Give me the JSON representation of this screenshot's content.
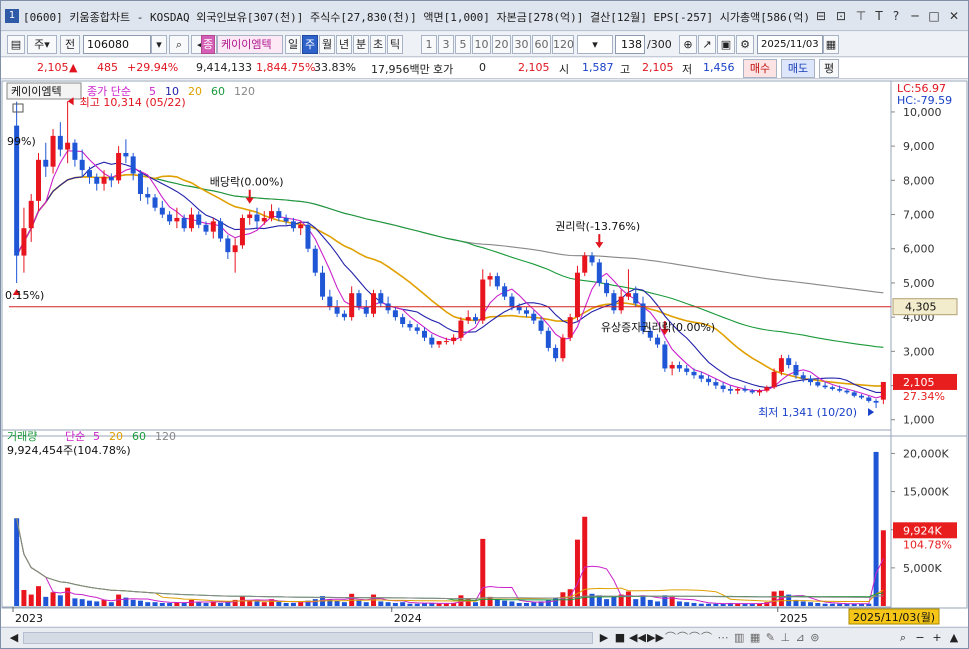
{
  "window": {
    "number": "1",
    "title": "[0600] 키움종합차트 - KOSDAQ 외국인보유[307(천)] 주식수[27,830(천)] 액면[1,000] 자본금[278(억)] 결산[12월] EPS[-257] 시가총액[586(억)]",
    "icons": [
      "restore-icon",
      "link-icon",
      "pin-icon",
      "text-icon",
      "help-icon",
      "minimize-icon",
      "maximize-icon",
      "close-icon"
    ]
  },
  "toolbar": {
    "period_type": "주",
    "prev_label": "전",
    "code": "106080",
    "name_badge": "종",
    "stock_name": "케이이엠텍",
    "tabs": [
      "일",
      "주",
      "월",
      "년",
      "분",
      "초",
      "틱"
    ],
    "active_tab": "주",
    "intervals": [
      "1",
      "3",
      "5",
      "10",
      "20",
      "30",
      "60",
      "120"
    ],
    "count": "138",
    "count_total": "/300",
    "date": "2025/11/03"
  },
  "quote": {
    "price": "2,105",
    "change": "485",
    "change_pct": "+29.94%",
    "volume": "9,414,133",
    "vol_pct": "1,844.75%",
    "turnover": "33.83%",
    "amount": "17,956백만",
    "hoga_label": "호가",
    "hoga_value": "0",
    "hoga_price": "2,105",
    "open_label": "시",
    "open": "1,587",
    "high_label": "고",
    "high": "2,105",
    "low_label": "저",
    "low": "1,456",
    "buy_label": "매수",
    "sell_label": "매도",
    "flat_label": "평"
  },
  "chart_data": {
    "type": "candlestick",
    "stock_label": "케이이엠텍",
    "ma_legend": {
      "label": "종가 단순",
      "periods": [
        "5",
        "10",
        "20",
        "60",
        "120"
      ],
      "colors": [
        "#cc22cc",
        "#2222aa",
        "#e0a000",
        "#1a9a3a",
        "#888888"
      ]
    },
    "lc_label": "LC:56.97",
    "hc_label": "HC:-79.59",
    "y_ticks": [
      "10,000",
      "9,000",
      "8,000",
      "7,000",
      "6,000",
      "5,000",
      "4,000",
      "3,000",
      "2,000",
      "1,000"
    ],
    "y_tick_values": [
      10000,
      9000,
      8000,
      7000,
      6000,
      5000,
      4000,
      3000,
      2000,
      1000
    ],
    "ylim": [
      700,
      10700
    ],
    "hline_value": 4305,
    "hline_label": "4,305",
    "current_label": "2,105",
    "current_pct": "27.34%",
    "annotations": {
      "high": "최고 10,314 (05/22)",
      "low": "최저 1,341 (10/20)",
      "pct_a": "99%)",
      "pct_b": "0.15%)",
      "div": "배당락(0.00%)",
      "rights": "권리락(-13.76%)",
      "capital": "유상증자권리락(0.00%)"
    },
    "x_labels": [
      "2023",
      "2024",
      "2025"
    ],
    "x_label_index": [
      0,
      52,
      105
    ],
    "candles": [
      [
        9600,
        10300,
        5000,
        5800
      ],
      [
        5800,
        7200,
        5300,
        6600
      ],
      [
        6600,
        7600,
        6200,
        7400
      ],
      [
        7400,
        8800,
        7100,
        8600
      ],
      [
        8600,
        9100,
        8100,
        8400
      ],
      [
        8400,
        9500,
        8200,
        9300
      ],
      [
        9300,
        9700,
        8700,
        8900
      ],
      [
        8900,
        10314,
        8500,
        9100
      ],
      [
        9100,
        9200,
        8400,
        8600
      ],
      [
        8600,
        8900,
        8100,
        8300
      ],
      [
        8300,
        8400,
        7900,
        8100
      ],
      [
        8100,
        8200,
        7700,
        7900
      ],
      [
        7900,
        8300,
        7700,
        8100
      ],
      [
        8100,
        8200,
        7800,
        8000
      ],
      [
        8000,
        9000,
        7900,
        8800
      ],
      [
        8800,
        9200,
        8500,
        8700
      ],
      [
        8700,
        8800,
        8000,
        8200
      ],
      [
        8200,
        8300,
        7400,
        7600
      ],
      [
        7600,
        7800,
        7300,
        7500
      ],
      [
        7500,
        7600,
        7100,
        7200
      ],
      [
        7200,
        7400,
        6900,
        7000
      ],
      [
        7000,
        7100,
        6700,
        6800
      ],
      [
        6800,
        7200,
        6600,
        6900
      ],
      [
        6900,
        7000,
        6500,
        6600
      ],
      [
        6600,
        7200,
        6500,
        7000
      ],
      [
        7000,
        7100,
        6600,
        6700
      ],
      [
        6700,
        6800,
        6400,
        6500
      ],
      [
        6500,
        6900,
        6300,
        6800
      ],
      [
        6800,
        6900,
        6200,
        6300
      ],
      [
        6300,
        6400,
        5700,
        5900
      ],
      [
        5900,
        6300,
        5300,
        6100
      ],
      [
        6100,
        7000,
        6000,
        6900
      ],
      [
        6900,
        7100,
        6700,
        7000
      ],
      [
        7000,
        7200,
        6600,
        6800
      ],
      [
        6800,
        7100,
        6700,
        6900
      ],
      [
        6900,
        7300,
        6800,
        7100
      ],
      [
        7100,
        7200,
        6800,
        6900
      ],
      [
        6900,
        7000,
        6700,
        6800
      ],
      [
        6800,
        6900,
        6500,
        6600
      ],
      [
        6600,
        6800,
        6400,
        6700
      ],
      [
        6700,
        6800,
        5900,
        6000
      ],
      [
        6000,
        6100,
        5200,
        5300
      ],
      [
        5300,
        5500,
        4500,
        4600
      ],
      [
        4600,
        4800,
        4200,
        4300
      ],
      [
        4300,
        4500,
        4000,
        4100
      ],
      [
        4100,
        4200,
        3900,
        4000
      ],
      [
        4000,
        4900,
        3900,
        4700
      ],
      [
        4700,
        4800,
        4200,
        4300
      ],
      [
        4300,
        4500,
        4000,
        4100
      ],
      [
        4100,
        4800,
        4000,
        4700
      ],
      [
        4700,
        4800,
        4300,
        4400
      ],
      [
        4400,
        4600,
        4100,
        4200
      ],
      [
        4200,
        4300,
        3900,
        4000
      ],
      [
        4000,
        4100,
        3700,
        3800
      ],
      [
        3800,
        3900,
        3600,
        3700
      ],
      [
        3700,
        3800,
        3500,
        3600
      ],
      [
        3600,
        3700,
        3300,
        3400
      ],
      [
        3400,
        3500,
        3100,
        3200
      ],
      [
        3200,
        3300,
        3100,
        3300
      ],
      [
        3300,
        3400,
        3200,
        3300
      ],
      [
        3300,
        3500,
        3200,
        3400
      ],
      [
        3400,
        4000,
        3300,
        3900
      ],
      [
        3900,
        4200,
        3800,
        4000
      ],
      [
        4000,
        4100,
        3800,
        3900
      ],
      [
        3900,
        5400,
        3800,
        5100
      ],
      [
        5100,
        5300,
        4900,
        5200
      ],
      [
        5200,
        5300,
        4800,
        4900
      ],
      [
        4900,
        5000,
        4500,
        4600
      ],
      [
        4600,
        4700,
        4200,
        4300
      ],
      [
        4300,
        4400,
        4100,
        4200
      ],
      [
        4200,
        4300,
        4000,
        4100
      ],
      [
        4100,
        4200,
        3800,
        3900
      ],
      [
        3900,
        4000,
        3500,
        3600
      ],
      [
        3600,
        3700,
        3000,
        3100
      ],
      [
        3100,
        3200,
        2700,
        2800
      ],
      [
        2800,
        3500,
        2700,
        3400
      ],
      [
        3400,
        4100,
        3300,
        4000
      ],
      [
        4000,
        5500,
        3900,
        5300
      ],
      [
        5300,
        5900,
        5200,
        5800
      ],
      [
        5800,
        5900,
        5500,
        5600
      ],
      [
        5600,
        5700,
        4900,
        5000
      ],
      [
        5000,
        5100,
        4600,
        4700
      ],
      [
        4700,
        4800,
        4100,
        4200
      ],
      [
        4200,
        4800,
        4100,
        4600
      ],
      [
        4600,
        5400,
        4500,
        4700
      ],
      [
        4700,
        4900,
        4300,
        4400
      ],
      [
        4400,
        4600,
        3500,
        3600
      ],
      [
        3600,
        3700,
        3300,
        3400
      ],
      [
        3400,
        3500,
        3100,
        3200
      ],
      [
        3200,
        3300,
        2400,
        2500
      ],
      [
        2500,
        2700,
        2300,
        2600
      ],
      [
        2600,
        2700,
        2400,
        2500
      ],
      [
        2500,
        2600,
        2300,
        2400
      ],
      [
        2400,
        2500,
        2200,
        2300
      ],
      [
        2300,
        2400,
        2100,
        2200
      ],
      [
        2200,
        2300,
        2000,
        2100
      ],
      [
        2100,
        2200,
        1900,
        2000
      ],
      [
        2000,
        2100,
        1800,
        1900
      ],
      [
        1900,
        2000,
        1750,
        1850
      ],
      [
        1850,
        1950,
        1750,
        1900
      ],
      [
        1900,
        2000,
        1800,
        1850
      ],
      [
        1850,
        1900,
        1750,
        1800
      ],
      [
        1800,
        1900,
        1700,
        1850
      ],
      [
        1850,
        2000,
        1800,
        1950
      ],
      [
        1950,
        2500,
        1900,
        2400
      ],
      [
        2400,
        2900,
        2300,
        2800
      ],
      [
        2800,
        2900,
        2500,
        2600
      ],
      [
        2600,
        2700,
        2200,
        2300
      ],
      [
        2300,
        2400,
        2100,
        2200
      ],
      [
        2200,
        2300,
        2000,
        2100
      ],
      [
        2100,
        2200,
        1950,
        2000
      ],
      [
        2000,
        2100,
        1900,
        1950
      ],
      [
        1950,
        2000,
        1850,
        1900
      ],
      [
        1900,
        2000,
        1800,
        1850
      ],
      [
        1850,
        1900,
        1750,
        1800
      ],
      [
        1800,
        1850,
        1650,
        1700
      ],
      [
        1700,
        1750,
        1600,
        1650
      ],
      [
        1650,
        1700,
        1500,
        1550
      ],
      [
        1550,
        1600,
        1341,
        1500
      ],
      [
        1587,
        2105,
        1456,
        2105
      ]
    ],
    "volume_label": "거래량",
    "volume_legend": {
      "label": "단순",
      "periods": [
        "5",
        "20",
        "60",
        "120"
      ],
      "colors": [
        "#cc22cc",
        "#e0a000",
        "#1a9a3a",
        "#888888"
      ]
    },
    "volume_current": "9,924,454주(104.78%)",
    "vol_y_ticks": [
      "20,000K",
      "15,000K",
      "10,000K",
      "5,000K"
    ],
    "vol_y_tick_values": [
      20000,
      15000,
      10000,
      5000
    ],
    "vol_ylim": [
      0,
      21500
    ],
    "vol_current_label": "9,924K",
    "vol_current_pct": "104.78%",
    "volumes": [
      11500,
      2100,
      1500,
      2600,
      1200,
      1800,
      1400,
      2400,
      1000,
      900,
      700,
      600,
      800,
      500,
      1500,
      1100,
      800,
      700,
      500,
      500,
      400,
      400,
      500,
      400,
      800,
      500,
      400,
      600,
      400,
      600,
      800,
      1300,
      700,
      600,
      500,
      900,
      600,
      400,
      400,
      500,
      700,
      900,
      1300,
      900,
      700,
      500,
      1600,
      700,
      500,
      1500,
      600,
      500,
      400,
      500,
      300,
      300,
      400,
      400,
      300,
      300,
      400,
      1400,
      900,
      500,
      8800,
      1200,
      900,
      700,
      600,
      400,
      400,
      500,
      600,
      800,
      1100,
      1800,
      2200,
      8700,
      11700,
      1600,
      1400,
      900,
      1200,
      1500,
      1900,
      900,
      1300,
      800,
      600,
      1400,
      1200,
      600,
      500,
      400,
      300,
      300,
      300,
      300,
      400,
      300,
      300,
      300,
      300,
      500,
      1900,
      2000,
      1500,
      800,
      600,
      500,
      400,
      300,
      300,
      300,
      300,
      300,
      300,
      300,
      20200,
      9924
    ],
    "date_badge": "2025/11/03(월)"
  },
  "bottom": {
    "controls": [
      "◀",
      "▶",
      "■",
      "◀◀",
      "▶▶",
      "‖",
      "−",
      "+",
      "▲"
    ]
  }
}
